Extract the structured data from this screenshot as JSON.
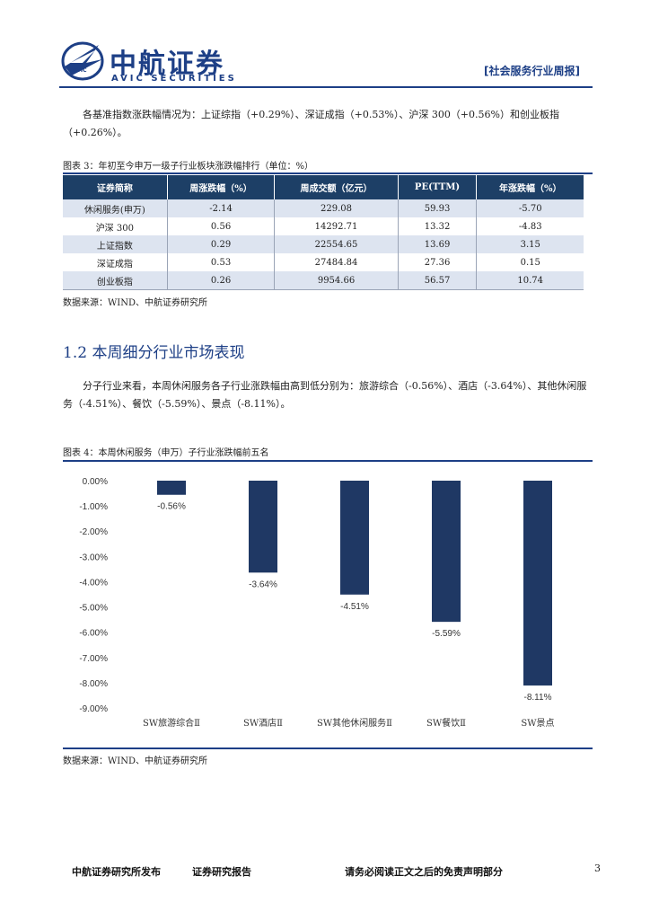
{
  "header": {
    "brand_cn": "中航证券",
    "brand_en": "AVIC SECURITIES",
    "logo_text": "AVIC",
    "report_tag": "[社会服务行业周报]"
  },
  "intro": {
    "text": "各基准指数涨跌幅情况为：上证综指（+0.29%）、深证成指（+0.53%）、沪深 300（+0.56%）和创业板指（+0.26%）。"
  },
  "table3": {
    "title": "图表 3：年初至今申万一级子行业板块涨跌幅排行（单位：%）",
    "headers": [
      "证券简称",
      "周涨跌幅（%）",
      "周成交额（亿元）",
      "PE(TTM)",
      "年涨跌幅（%）"
    ],
    "rows": [
      [
        "休闲服务(申万)",
        "-2.14",
        "229.08",
        "59.93",
        "-5.70"
      ],
      [
        "沪深 300",
        "0.56",
        "14292.71",
        "13.32",
        "-4.83"
      ],
      [
        "上证指数",
        "0.29",
        "22554.65",
        "13.69",
        "3.15"
      ],
      [
        "深证成指",
        "0.53",
        "27484.84",
        "27.36",
        "0.15"
      ],
      [
        "创业板指",
        "0.26",
        "9954.66",
        "56.57",
        "10.74"
      ]
    ],
    "source": "数据来源：WIND、中航证券研究所"
  },
  "section": {
    "title": "1.2 本周细分行业市场表现",
    "text": "分子行业来看，本周休闲服务各子行业涨跌幅由高到低分别为：旅游综合（-0.56%）、酒店（-3.64%）、其他休闲服务（-4.51%）、餐饮（-5.59%）、景点（-8.11%）。"
  },
  "figure4": {
    "title": "图表 4：本周休闲服务（申万）子行业涨跌幅前五名",
    "source": "数据来源：WIND、中航证券研究所"
  },
  "chart_data": {
    "type": "bar",
    "categories": [
      "SW旅游综合Ⅱ",
      "SW酒店Ⅱ",
      "SW其他休闲服务Ⅱ",
      "SW餐饮Ⅱ",
      "SW景点"
    ],
    "values": [
      -0.56,
      -3.64,
      -4.51,
      -5.59,
      -8.11
    ],
    "data_labels": [
      "-0.56%",
      "-3.64%",
      "-4.51%",
      "-5.59%",
      "-8.11%"
    ],
    "title": "",
    "xlabel": "",
    "ylabel": "",
    "ylim": [
      -9,
      0
    ],
    "yticks": [
      "0.00%",
      "-1.00%",
      "-2.00%",
      "-3.00%",
      "-4.00%",
      "-5.00%",
      "-6.00%",
      "-7.00%",
      "-8.00%",
      "-9.00%"
    ],
    "bar_color": "#1f3864",
    "grid": false,
    "legend": "none"
  },
  "footer": {
    "left": "中航证券研究所发布",
    "middle": "证券研究报告",
    "right": "请务必阅读正文之后的免责声明部分",
    "page": "3"
  },
  "colors": {
    "brand": "#1d3f86",
    "table_header": "#1d3f66",
    "row_stripe": "#dde4f0"
  }
}
